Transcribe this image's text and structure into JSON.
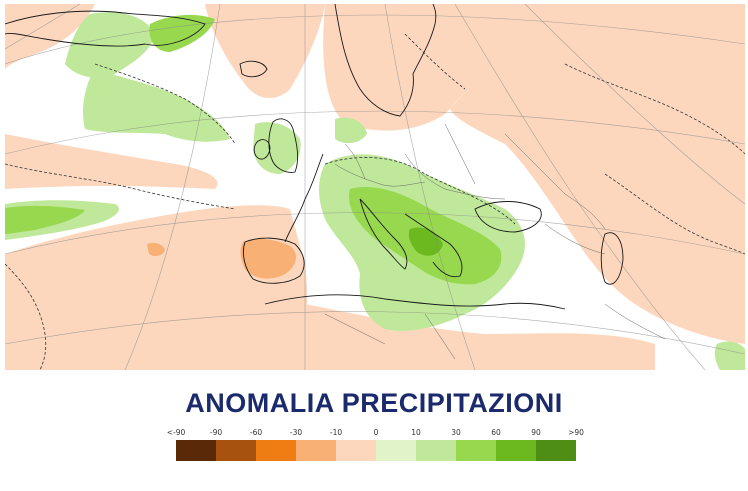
{
  "title": "ANOMALIA PRECIPITAZIONI",
  "legend": {
    "labels": [
      "<-90",
      "-90",
      "-60",
      "-30",
      "-10",
      "0",
      "10",
      "30",
      "60",
      "90",
      ">90"
    ],
    "colors": [
      "#5a2a08",
      "#a8520f",
      "#f07d14",
      "#f8b074",
      "#fcd7bd",
      "#e1f3c9",
      "#bfe89a",
      "#97d84f",
      "#6cb81f",
      "#4e8e14"
    ]
  },
  "map": {
    "colors": {
      "sea": "#ffffff",
      "dry_light": "#fcd7bd",
      "dry_mid": "#f8b074",
      "wet_light": "#bfe89a",
      "wet_mid": "#97d84f",
      "wet_deep": "#6cb81f",
      "coast": "#1a1a1a",
      "border": "#666666",
      "grid": "#888888"
    }
  }
}
